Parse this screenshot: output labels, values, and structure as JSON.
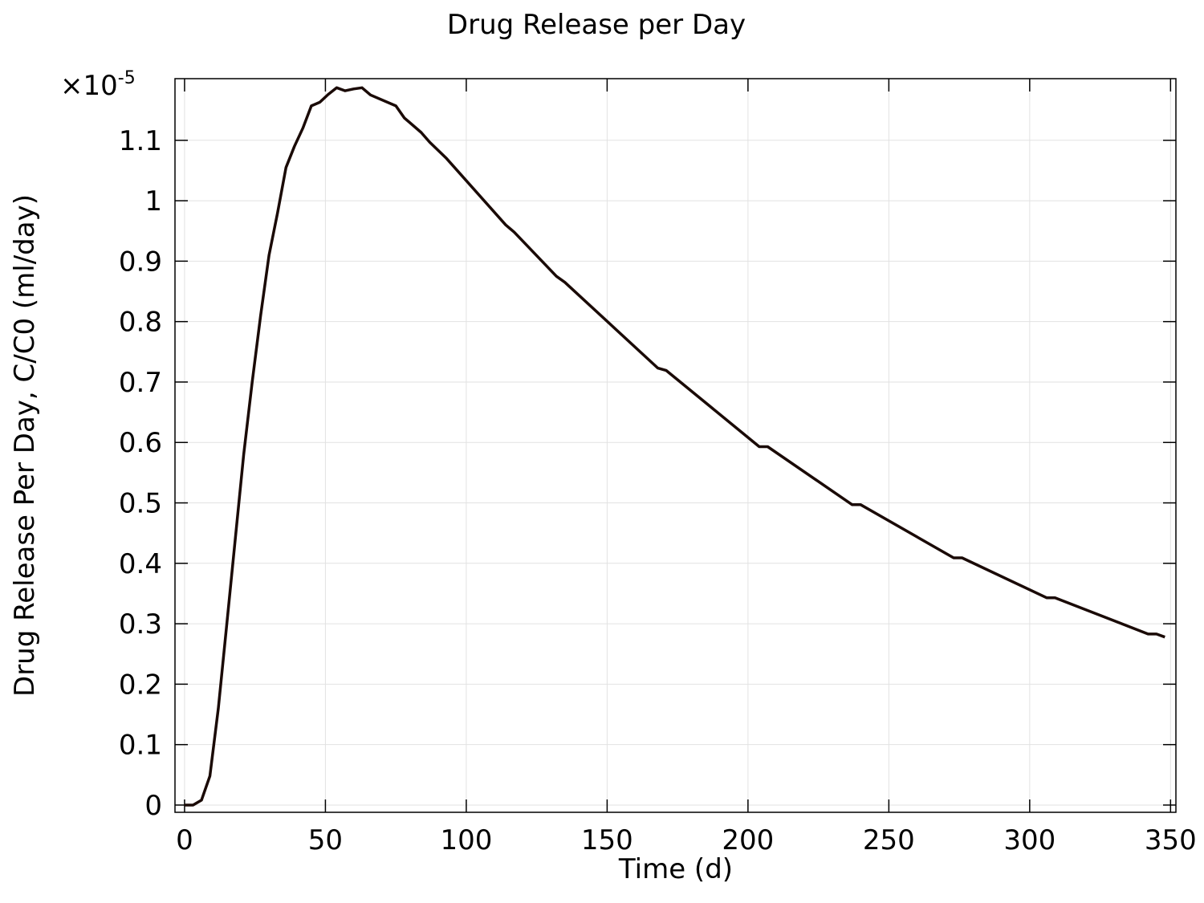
{
  "chart_data": {
    "type": "line",
    "title": "Drug Release per Day",
    "xlabel": "Time (d)",
    "ylabel": "Drug Release Per Day, C/C0 (ml/day)",
    "y_multiplier_label": "×10",
    "y_multiplier_exponent": "-5",
    "xlim": [
      -3.4,
      351.9
    ],
    "ylim": [
      -0.012,
      1.202
    ],
    "xticks": [
      0,
      50,
      100,
      150,
      200,
      250,
      300,
      350
    ],
    "xtick_labels": [
      "0",
      "50",
      "100",
      "150",
      "200",
      "250",
      "300",
      "350"
    ],
    "yticks": [
      0,
      0.1,
      0.2,
      0.3,
      0.4,
      0.5,
      0.6,
      0.7,
      0.8,
      0.9,
      1,
      1.1
    ],
    "ytick_labels": [
      "0",
      "0.1",
      "0.2",
      "0.3",
      "0.4",
      "0.5",
      "0.6",
      "0.7",
      "0.8",
      "0.9",
      "1",
      "1.1"
    ],
    "grid": true,
    "line_color": "#1a0a06",
    "series": [
      {
        "name": "Drug Release per Day",
        "x": [
          0,
          3,
          6,
          9,
          12,
          15,
          18,
          21,
          24,
          27,
          30,
          33,
          36,
          39,
          42,
          45,
          48,
          51,
          54,
          57,
          60,
          63,
          66,
          75,
          78,
          84,
          87,
          93,
          114,
          117,
          132,
          135,
          168,
          171,
          204,
          207,
          237,
          240,
          273,
          276,
          306,
          309,
          342,
          345,
          348
        ],
        "y": [
          0,
          0,
          0.008,
          0.048,
          0.16,
          0.3,
          0.44,
          0.58,
          0.7,
          0.81,
          0.91,
          0.98,
          1.055,
          1.09,
          1.12,
          1.157,
          1.163,
          1.176,
          1.187,
          1.182,
          1.185,
          1.187,
          1.175,
          1.157,
          1.137,
          1.113,
          1.097,
          1.07,
          0.96,
          0.948,
          0.875,
          0.865,
          0.723,
          0.719,
          0.593,
          0.593,
          0.497,
          0.497,
          0.409,
          0.409,
          0.343,
          0.343,
          0.283,
          0.283,
          0.278
        ]
      }
    ]
  }
}
